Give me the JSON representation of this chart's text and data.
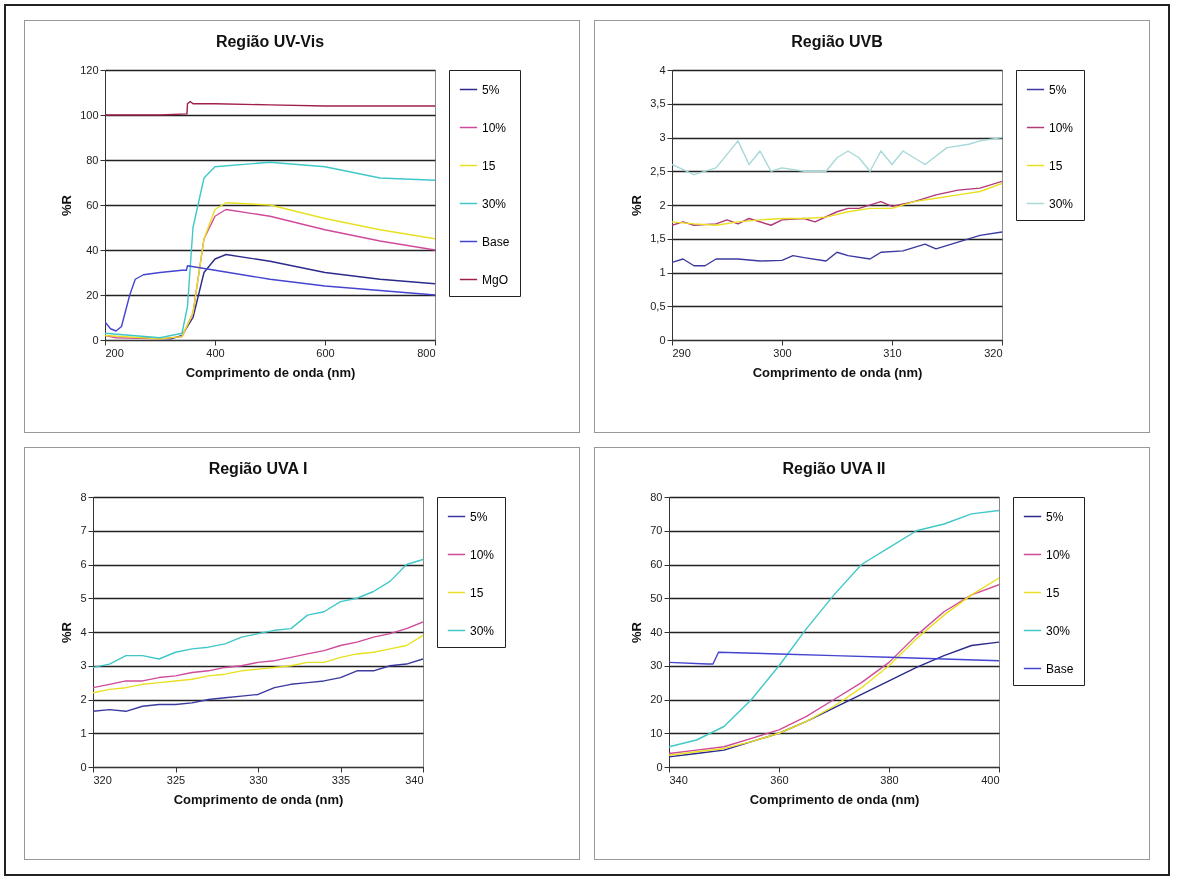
{
  "chart_data": [
    {
      "type": "line",
      "title": "Região UV-Vis",
      "xlabel": "Comprimento de onda (nm)",
      "ylabel": "%R",
      "xlim": [
        200,
        800
      ],
      "xticks": [
        200,
        400,
        600,
        800
      ],
      "ylim": [
        0,
        120
      ],
      "yticks": [
        0,
        20,
        40,
        60,
        80,
        100,
        120
      ],
      "grid": "y",
      "legend": "right",
      "marker": "none",
      "line_style": "solid",
      "series": [
        {
          "name": "5%",
          "color": "#2a2a8c",
          "x": [
            260,
            320,
            340,
            360,
            380,
            400,
            420,
            500,
            600,
            700,
            800
          ],
          "values": [
            1,
            0.5,
            2,
            10,
            30,
            36,
            38,
            35,
            30,
            27,
            25
          ]
        },
        {
          "name": "10%",
          "color": "#d04a9a",
          "x": [
            200,
            220,
            300,
            340,
            360,
            380,
            400,
            420,
            500,
            600,
            700,
            800
          ],
          "values": [
            2,
            1,
            0.5,
            1.5,
            12,
            45,
            55,
            58,
            55,
            49,
            44,
            40
          ]
        },
        {
          "name": "15",
          "color": "#e8e020",
          "x": [
            200,
            300,
            340,
            360,
            380,
            400,
            420,
            500,
            600,
            700,
            800
          ],
          "values": [
            2,
            0.5,
            1.5,
            12,
            45,
            58,
            61,
            60,
            54,
            49,
            45
          ]
        },
        {
          "name": "30%",
          "color": "#40c8c8",
          "x": [
            200,
            300,
            340,
            350,
            360,
            380,
            400,
            500,
            600,
            700,
            800
          ],
          "values": [
            3,
            1,
            3,
            15,
            50,
            72,
            77,
            79,
            77,
            72,
            71
          ]
        },
        {
          "name": "Base",
          "color": "#4444d0",
          "x": [
            200,
            210,
            220,
            230,
            245,
            255,
            270,
            300,
            340,
            348,
            350,
            400,
            500,
            600,
            700,
            800
          ],
          "values": [
            8,
            5,
            4,
            6,
            20,
            27,
            29,
            30,
            31,
            31,
            33,
            31,
            27,
            24,
            22,
            20
          ]
        },
        {
          "name": "MgO",
          "color": "#a02048",
          "x": [
            200,
            250,
            300,
            349,
            350,
            355,
            360,
            400,
            500,
            600,
            700,
            800
          ],
          "values": [
            100,
            100,
            100,
            100.5,
            105,
            106,
            105,
            105,
            104.5,
            104,
            104,
            104
          ]
        }
      ]
    },
    {
      "type": "line",
      "title": "Região UVB",
      "xlabel": "Comprimento de onda (nm)",
      "ylabel": "%R",
      "xlim": [
        290,
        320
      ],
      "xticks": [
        290,
        300,
        310,
        320
      ],
      "ylim": [
        0,
        4
      ],
      "yticks": [
        0,
        {
          "value": 0.5,
          "label": "0,5"
        },
        1,
        {
          "value": 1.5,
          "label": "1,5"
        },
        2,
        {
          "value": 2.5,
          "label": "2,5"
        },
        3,
        {
          "value": 3.5,
          "label": "3,5"
        },
        4
      ],
      "grid": "y",
      "legend": "right",
      "marker": "none",
      "line_style": "solid",
      "series": [
        {
          "name": "5%",
          "color": "#3a3aa0",
          "x": [
            290,
            291,
            292,
            293,
            294,
            296,
            298,
            300,
            301,
            302,
            304,
            305,
            306,
            308,
            309,
            311,
            313,
            314,
            316,
            318,
            320
          ],
          "values": [
            1.15,
            1.2,
            1.1,
            1.1,
            1.2,
            1.2,
            1.17,
            1.18,
            1.25,
            1.22,
            1.17,
            1.3,
            1.25,
            1.2,
            1.3,
            1.32,
            1.42,
            1.35,
            1.45,
            1.55,
            1.6
          ]
        },
        {
          "name": "10%",
          "color": "#b03a7a",
          "x": [
            290,
            291,
            292,
            294,
            295,
            296,
            297,
            299,
            300,
            302,
            303,
            305,
            306,
            307,
            309,
            310,
            312,
            314,
            316,
            318,
            320
          ],
          "values": [
            1.7,
            1.75,
            1.7,
            1.72,
            1.78,
            1.72,
            1.8,
            1.7,
            1.78,
            1.8,
            1.75,
            1.9,
            1.95,
            1.95,
            2.05,
            1.98,
            2.05,
            2.15,
            2.22,
            2.25,
            2.35
          ]
        },
        {
          "name": "15",
          "color": "#e8e020",
          "x": [
            290,
            292,
            294,
            296,
            298,
            300,
            302,
            304,
            306,
            308,
            310,
            312,
            314,
            316,
            318,
            320
          ],
          "values": [
            1.75,
            1.72,
            1.7,
            1.75,
            1.78,
            1.8,
            1.8,
            1.82,
            1.9,
            1.95,
            1.95,
            2.05,
            2.1,
            2.15,
            2.2,
            2.32
          ]
        },
        {
          "name": "30%",
          "color": "#a8d8d8",
          "x": [
            290,
            292,
            294,
            296,
            297,
            298,
            299,
            300,
            302,
            304,
            305,
            306,
            307,
            308,
            309,
            310,
            311,
            312,
            313,
            315,
            317,
            318,
            320
          ],
          "values": [
            2.6,
            2.45,
            2.55,
            2.95,
            2.6,
            2.8,
            2.5,
            2.55,
            2.5,
            2.5,
            2.7,
            2.8,
            2.7,
            2.5,
            2.8,
            2.6,
            2.8,
            2.7,
            2.6,
            2.85,
            2.9,
            2.95,
            3.0
          ]
        }
      ]
    },
    {
      "type": "line",
      "title": "Região UVA I",
      "xlabel": "Comprimento de onda (nm)",
      "ylabel": "%R",
      "xlim": [
        320,
        340
      ],
      "xticks": [
        320,
        325,
        330,
        335,
        340
      ],
      "ylim": [
        0,
        8
      ],
      "yticks": [
        0,
        1,
        2,
        3,
        4,
        5,
        6,
        7,
        8
      ],
      "grid": "y",
      "legend": "right",
      "marker": "none",
      "line_style": "solid",
      "series": [
        {
          "name": "5%",
          "color": "#3a3aa0",
          "x": [
            320,
            321,
            322,
            323,
            324,
            325,
            326,
            327,
            328,
            329,
            330,
            331,
            332,
            333,
            334,
            335,
            336,
            337,
            338,
            339,
            340
          ],
          "values": [
            1.65,
            1.7,
            1.65,
            1.8,
            1.85,
            1.85,
            1.9,
            2.0,
            2.05,
            2.1,
            2.15,
            2.35,
            2.45,
            2.5,
            2.55,
            2.65,
            2.85,
            2.85,
            3.0,
            3.05,
            3.2
          ]
        },
        {
          "name": "10%",
          "color": "#d04a9a",
          "x": [
            320,
            321,
            322,
            323,
            324,
            325,
            326,
            327,
            328,
            329,
            330,
            331,
            332,
            333,
            334,
            335,
            336,
            337,
            338,
            339,
            340
          ],
          "values": [
            2.35,
            2.45,
            2.55,
            2.55,
            2.65,
            2.7,
            2.8,
            2.85,
            2.95,
            3.0,
            3.1,
            3.15,
            3.25,
            3.35,
            3.45,
            3.6,
            3.7,
            3.85,
            3.95,
            4.1,
            4.3
          ]
        },
        {
          "name": "15",
          "color": "#e8e020",
          "x": [
            320,
            321,
            322,
            323,
            324,
            325,
            326,
            327,
            328,
            329,
            330,
            331,
            332,
            333,
            334,
            335,
            336,
            337,
            338,
            339,
            340
          ],
          "values": [
            2.2,
            2.3,
            2.35,
            2.45,
            2.5,
            2.55,
            2.6,
            2.7,
            2.75,
            2.85,
            2.9,
            2.95,
            3.0,
            3.1,
            3.1,
            3.25,
            3.35,
            3.4,
            3.5,
            3.6,
            3.9
          ]
        },
        {
          "name": "30%",
          "color": "#40c8c8",
          "x": [
            320,
            321,
            322,
            323,
            324,
            325,
            326,
            327,
            328,
            329,
            330,
            331,
            332,
            333,
            334,
            335,
            336,
            337,
            338,
            339,
            340
          ],
          "values": [
            2.95,
            3.05,
            3.3,
            3.3,
            3.2,
            3.4,
            3.5,
            3.55,
            3.65,
            3.85,
            3.95,
            4.05,
            4.1,
            4.5,
            4.6,
            4.9,
            5.0,
            5.2,
            5.5,
            6.0,
            6.15
          ]
        }
      ]
    },
    {
      "type": "line",
      "title": "Região UVA II",
      "xlabel": "Comprimento de onda (nm)",
      "ylabel": "%R",
      "xlim": [
        340,
        400
      ],
      "xticks": [
        340,
        360,
        380,
        400
      ],
      "ylim": [
        0,
        80
      ],
      "yticks": [
        0,
        10,
        20,
        30,
        40,
        50,
        60,
        70,
        80
      ],
      "grid": "y",
      "legend": "right",
      "marker": "none",
      "line_style": "solid",
      "series": [
        {
          "name": "5%",
          "color": "#2a2a8c",
          "x": [
            340,
            345,
            350,
            355,
            360,
            365,
            370,
            375,
            380,
            385,
            390,
            395,
            400
          ],
          "values": [
            3,
            4,
            5,
            7.5,
            10,
            13.5,
            17.5,
            21.5,
            25.5,
            29.5,
            33,
            36,
            37
          ]
        },
        {
          "name": "10%",
          "color": "#d04a9a",
          "x": [
            340,
            345,
            350,
            355,
            360,
            365,
            370,
            375,
            380,
            385,
            390,
            395,
            400
          ],
          "values": [
            4,
            5,
            6,
            8.5,
            11,
            15,
            20,
            25,
            31,
            39,
            46,
            51,
            54
          ]
        },
        {
          "name": "15",
          "color": "#e8e020",
          "x": [
            340,
            345,
            350,
            355,
            360,
            365,
            370,
            375,
            380,
            385,
            390,
            395,
            400
          ],
          "values": [
            3.5,
            4.5,
            5.5,
            7.5,
            10,
            13.5,
            18,
            23.5,
            30,
            38,
            45,
            51,
            56
          ]
        },
        {
          "name": "30%",
          "color": "#40c8c8",
          "x": [
            340,
            345,
            350,
            355,
            360,
            365,
            370,
            375,
            380,
            385,
            390,
            395,
            400
          ],
          "values": [
            6,
            8,
            12,
            20,
            30,
            41,
            51,
            60,
            65,
            70,
            72,
            75,
            76
          ]
        },
        {
          "name": "Base",
          "color": "#4444d0",
          "x": [
            340,
            347,
            348,
            349,
            360,
            370,
            380,
            390,
            400
          ],
          "values": [
            31,
            30.5,
            30.5,
            34,
            33.5,
            33,
            32.5,
            32,
            31.5
          ]
        }
      ]
    }
  ]
}
